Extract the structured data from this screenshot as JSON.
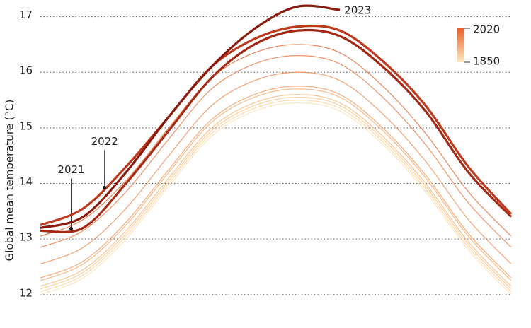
{
  "chart_data": {
    "type": "line",
    "y_label": "Global mean temperature (°C)",
    "categories": [
      null,
      null,
      null,
      null,
      null,
      null,
      null,
      null,
      null,
      null,
      null,
      null
    ],
    "ylim": [
      11.4,
      17.3
    ],
    "yticks": [
      12,
      13,
      14,
      15,
      16,
      17
    ],
    "grid": true,
    "colorbar": {
      "labels": [
        2020,
        1850
      ],
      "colors": [
        "#e8622a",
        "#fde8c0"
      ]
    },
    "series": [
      {
        "color": "#fde3b8",
        "values": [
          12.0,
          12.3,
          13.0,
          13.95,
          14.85,
          15.3,
          15.45,
          15.3,
          14.7,
          13.85,
          12.8,
          12.0
        ]
      },
      {
        "color": "#fcd6a2",
        "values": [
          12.05,
          12.35,
          13.05,
          14.0,
          14.9,
          15.35,
          15.5,
          15.35,
          14.75,
          13.9,
          12.85,
          12.05
        ]
      },
      {
        "color": "#fbc890",
        "values": [
          12.1,
          12.4,
          13.1,
          14.05,
          14.95,
          15.4,
          15.55,
          15.4,
          14.8,
          13.95,
          12.9,
          12.1
        ]
      },
      {
        "color": "#f9bb80",
        "values": [
          12.15,
          12.45,
          13.15,
          14.1,
          15.0,
          15.45,
          15.6,
          15.45,
          14.85,
          14.0,
          12.95,
          12.15
        ]
      },
      {
        "color": "#f7ad72",
        "values": [
          12.25,
          12.55,
          13.25,
          14.2,
          15.1,
          15.55,
          15.7,
          15.55,
          14.95,
          14.1,
          13.05,
          12.25
        ]
      },
      {
        "color": "#f5a066",
        "values": [
          12.3,
          12.6,
          13.3,
          14.25,
          15.15,
          15.6,
          15.75,
          15.6,
          15.0,
          14.15,
          13.1,
          12.3
        ]
      },
      {
        "color": "#f2905a",
        "values": [
          12.55,
          12.85,
          13.55,
          14.5,
          15.4,
          15.85,
          16.0,
          15.85,
          15.25,
          14.4,
          13.35,
          12.55
        ]
      },
      {
        "color": "#ee7f4c",
        "values": [
          12.85,
          13.15,
          13.85,
          14.8,
          15.7,
          16.15,
          16.3,
          16.15,
          15.55,
          14.7,
          13.65,
          12.85
        ]
      },
      {
        "color": "#e8703e",
        "values": [
          13.05,
          13.35,
          14.05,
          15.0,
          15.9,
          16.35,
          16.5,
          16.35,
          15.75,
          14.9,
          13.85,
          13.05
        ]
      },
      {
        "name": "2021",
        "color": "#a52a16",
        "values": [
          13.15,
          13.2,
          14.0,
          14.95,
          15.9,
          16.5,
          16.75,
          16.65,
          16.1,
          15.3,
          14.2,
          13.4
        ]
      },
      {
        "name": "2022",
        "color": "#c0391d",
        "values": [
          13.25,
          13.55,
          14.3,
          15.2,
          16.1,
          16.6,
          16.82,
          16.75,
          16.2,
          15.4,
          14.3,
          13.45
        ]
      },
      {
        "name": "2023",
        "color": "#8b1a0e",
        "values": [
          13.2,
          13.4,
          14.2,
          15.2,
          16.1,
          16.78,
          17.18,
          17.12,
          null,
          null,
          null,
          null
        ]
      }
    ]
  }
}
